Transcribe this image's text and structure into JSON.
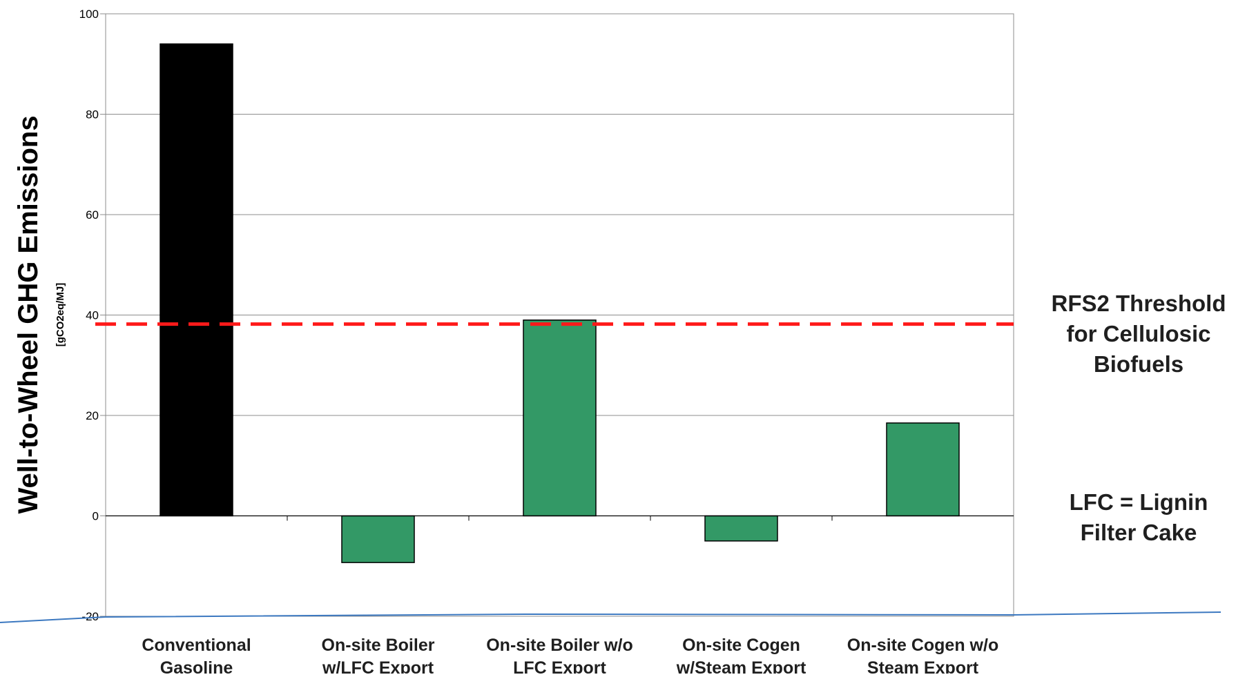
{
  "chart_data": {
    "type": "bar",
    "categories": [
      [
        "Conventional",
        "Gasoline"
      ],
      [
        "On-site Boiler",
        "w/LFC Export"
      ],
      [
        "On-site Boiler w/o",
        "LFC Export"
      ],
      [
        "On-site Cogen",
        "w/Steam Export"
      ],
      [
        "On-site Cogen w/o",
        "Steam Export"
      ]
    ],
    "values": [
      94,
      -9.3,
      39,
      -5,
      18.5
    ],
    "ylim": [
      -20,
      100
    ],
    "yticks": [
      -20,
      0,
      20,
      40,
      60,
      80,
      100
    ],
    "ylabel": "Well-to-Wheel GHG Emissions",
    "ylabel_unit": "[gCO2eq/MJ]",
    "grid": true,
    "colors": {
      "bars": [
        "#000000",
        "#339966",
        "#339966",
        "#339966",
        "#339966"
      ],
      "bar_outline": "#000000",
      "threshold_line": "#ff1a1a",
      "gridline": "#8c8c8c",
      "decor_line": "#3b78c0"
    },
    "threshold": {
      "value": 38.2,
      "label_lines": [
        "RFS2 Threshold",
        "for Cellulosic",
        "Biofuels"
      ]
    },
    "note_lines": [
      "LFC = Lignin",
      "Filter Cake"
    ]
  }
}
